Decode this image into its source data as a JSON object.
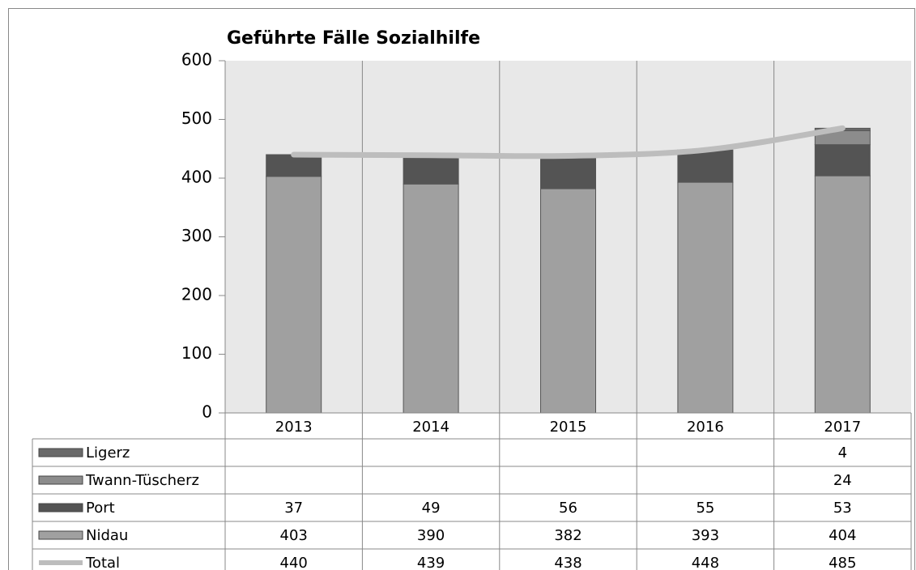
{
  "chart_data": {
    "type": "bar",
    "stacked": true,
    "title": "Geführte Fälle Sozialhilfe",
    "categories": [
      "2013",
      "2014",
      "2015",
      "2016",
      "2017"
    ],
    "series": [
      {
        "name": "Ligerz",
        "type": "bar",
        "color": "#6a6a6a",
        "values": [
          null,
          null,
          null,
          null,
          4
        ]
      },
      {
        "name": "Twann-Tüscherz",
        "type": "bar",
        "color": "#8c8c8c",
        "values": [
          null,
          null,
          null,
          null,
          24
        ]
      },
      {
        "name": "Port",
        "type": "bar",
        "color": "#545454",
        "values": [
          37,
          49,
          56,
          55,
          53
        ]
      },
      {
        "name": "Nidau",
        "type": "bar",
        "color": "#a0a0a0",
        "values": [
          403,
          390,
          382,
          393,
          404
        ]
      },
      {
        "name": "Total",
        "type": "line",
        "color": "#bdbdbd",
        "values": [
          440,
          439,
          438,
          448,
          485
        ]
      }
    ],
    "ylim": [
      0,
      600
    ],
    "yticks": [
      0,
      100,
      200,
      300,
      400,
      500,
      600
    ],
    "data_table": true
  }
}
